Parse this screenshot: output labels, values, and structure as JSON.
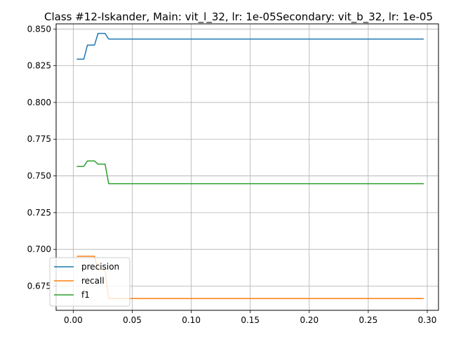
{
  "chart_data": {
    "type": "line",
    "title": "Class #12-Iskander, Main: vit_l_32, lr: 1e-05Secondary: vit_b_32, lr: 1e-05",
    "xlabel": "",
    "ylabel": "",
    "xlim": [
      -0.0145,
      0.3095
    ],
    "ylim": [
      0.6585,
      0.8535
    ],
    "xticks": [
      0.0,
      0.05,
      0.1,
      0.15,
      0.2,
      0.25,
      0.3
    ],
    "xtick_labels": [
      "0.00",
      "0.05",
      "0.10",
      "0.15",
      "0.20",
      "0.25",
      "0.30"
    ],
    "yticks": [
      0.675,
      0.7,
      0.725,
      0.75,
      0.775,
      0.8,
      0.825,
      0.85
    ],
    "ytick_labels": [
      "0.675",
      "0.700",
      "0.725",
      "0.750",
      "0.775",
      "0.800",
      "0.825",
      "0.850"
    ],
    "grid": true,
    "legend_position": "lower-left",
    "series": [
      {
        "name": "precision",
        "color": "#1f77b4",
        "x": [
          0.003,
          0.009,
          0.012,
          0.018,
          0.021,
          0.027,
          0.03,
          0.297
        ],
        "y": [
          0.8295,
          0.8295,
          0.839,
          0.839,
          0.847,
          0.847,
          0.8432,
          0.8432
        ]
      },
      {
        "name": "recall",
        "color": "#ff7f0e",
        "x": [
          0.003,
          0.018,
          0.021,
          0.027,
          0.03,
          0.297
        ],
        "y": [
          0.6953,
          0.6953,
          0.686,
          0.686,
          0.6665,
          0.6665
        ]
      },
      {
        "name": "f1",
        "color": "#2ca02c",
        "x": [
          0.003,
          0.009,
          0.012,
          0.018,
          0.021,
          0.027,
          0.03,
          0.297
        ],
        "y": [
          0.7565,
          0.7565,
          0.7602,
          0.7602,
          0.758,
          0.758,
          0.7447,
          0.7447
        ]
      }
    ]
  }
}
